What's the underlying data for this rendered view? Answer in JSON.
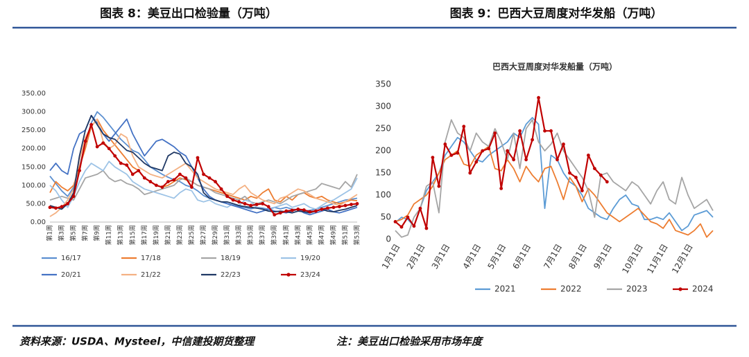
{
  "chart_data": [
    {
      "type": "line",
      "title": "图表 8：美豆出口检验量（万吨）",
      "categories": [
        "第1周",
        null,
        "第3周",
        null,
        "第5周",
        null,
        "第7周",
        null,
        "第9周",
        null,
        "第11周",
        null,
        "第13周",
        null,
        "第15周",
        null,
        "第17周",
        null,
        "第19周",
        null,
        "第21周",
        null,
        "第23周",
        null,
        "第25周",
        null,
        "第27周",
        null,
        "第29周",
        null,
        "第31周",
        null,
        "第33周",
        null,
        "第35周",
        null,
        "第37周",
        null,
        "第39周",
        null,
        "第41周",
        null,
        "第43周",
        null,
        "第45周",
        null,
        "第47周",
        null,
        "第49周",
        null,
        "第51周",
        null,
        "第53周"
      ],
      "ylim": [
        0,
        350
      ],
      "yticks": [
        {
          "value": 0,
          "label": "0.00"
        },
        {
          "value": 50,
          "label": "50.00"
        },
        {
          "value": 100,
          "label": "100.00"
        },
        {
          "value": 150,
          "label": "150.00"
        },
        {
          "value": 200,
          "label": "200.00"
        },
        {
          "value": 250,
          "label": "250.00"
        },
        {
          "value": 300,
          "label": "300.00"
        },
        {
          "value": 350,
          "label": "350.00"
        }
      ],
      "grid": false,
      "legend": "bottom",
      "series": [
        {
          "name": "16/17",
          "color": "#5b8fd0",
          "values": [
            125,
            105,
            85,
            70,
            95,
            150,
            215,
            270,
            300,
            285,
            265,
            245,
            225,
            210,
            195,
            188,
            170,
            150,
            140,
            130,
            122,
            115,
            110,
            100,
            95,
            85,
            72,
            65,
            60,
            55,
            50,
            46,
            42,
            40,
            36,
            40,
            38,
            35,
            40,
            36,
            40,
            35,
            34,
            30,
            32,
            35,
            40,
            45,
            50,
            55,
            60,
            62,
            65
          ]
        },
        {
          "name": "17/18",
          "color": "#ed7d31",
          "values": [
            80,
            110,
            95,
            85,
            100,
            150,
            200,
            260,
            280,
            250,
            230,
            210,
            190,
            170,
            150,
            140,
            120,
            110,
            100,
            95,
            100,
            110,
            120,
            115,
            110,
            100,
            95,
            90,
            85,
            80,
            75,
            70,
            65,
            60,
            70,
            65,
            80,
            90,
            60,
            55,
            70,
            60,
            75,
            80,
            70,
            65,
            70,
            60,
            55,
            50,
            55,
            60,
            58
          ]
        },
        {
          "name": "18/19",
          "color": "#a5a5a5",
          "values": [
            60,
            65,
            70,
            65,
            60,
            90,
            120,
            125,
            130,
            140,
            120,
            110,
            115,
            105,
            100,
            90,
            75,
            80,
            85,
            90,
            95,
            100,
            115,
            120,
            110,
            100,
            95,
            90,
            80,
            75,
            70,
            65,
            60,
            70,
            55,
            50,
            55,
            60,
            55,
            50,
            60,
            70,
            75,
            80,
            85,
            90,
            105,
            100,
            95,
            90,
            110,
            95,
            130
          ]
        },
        {
          "name": "19/20",
          "color": "#9dc3e6",
          "values": [
            100,
            85,
            60,
            40,
            70,
            110,
            140,
            160,
            150,
            140,
            165,
            150,
            140,
            130,
            110,
            100,
            90,
            85,
            80,
            75,
            70,
            65,
            80,
            90,
            85,
            60,
            55,
            60,
            50,
            45,
            40,
            50,
            45,
            60,
            55,
            40,
            35,
            30,
            40,
            45,
            50,
            40,
            45,
            50,
            40,
            35,
            45,
            55,
            60,
            70,
            80,
            90,
            120
          ]
        },
        {
          "name": "20/21",
          "color": "#4472c4",
          "values": [
            140,
            160,
            140,
            130,
            200,
            240,
            250,
            290,
            270,
            240,
            220,
            240,
            260,
            280,
            240,
            210,
            180,
            200,
            220,
            225,
            215,
            205,
            190,
            180,
            150,
            120,
            90,
            70,
            60,
            55,
            50,
            45,
            40,
            35,
            30,
            25,
            30,
            35,
            30,
            28,
            25,
            30,
            35,
            25,
            20,
            25,
            30,
            35,
            28,
            25,
            30,
            35,
            40
          ]
        },
        {
          "name": "21/22",
          "color": "#f4b183",
          "values": [
            15,
            25,
            40,
            60,
            90,
            170,
            230,
            260,
            280,
            220,
            200,
            210,
            240,
            230,
            180,
            150,
            140,
            130,
            125,
            120,
            130,
            140,
            150,
            160,
            140,
            120,
            110,
            100,
            90,
            85,
            80,
            75,
            90,
            100,
            80,
            70,
            60,
            55,
            50,
            65,
            70,
            80,
            90,
            85,
            75,
            65,
            60,
            55,
            50,
            45,
            55,
            65,
            75
          ]
        },
        {
          "name": "22/23",
          "color": "#1f3864",
          "values": [
            45,
            40,
            35,
            50,
            80,
            180,
            250,
            290,
            265,
            240,
            230,
            225,
            210,
            195,
            190,
            175,
            160,
            150,
            145,
            140,
            180,
            190,
            185,
            160,
            150,
            130,
            80,
            65,
            60,
            55,
            55,
            50,
            45,
            42,
            40,
            38,
            35,
            30,
            28,
            30,
            28,
            25,
            30,
            28,
            25,
            30,
            35,
            30,
            28,
            32,
            35,
            40,
            45
          ]
        },
        {
          "name": "23/24",
          "color": "#c00000",
          "markers": true,
          "values": [
            40,
            38,
            42,
            50,
            70,
            140,
            220,
            265,
            205,
            215,
            200,
            180,
            160,
            155,
            130,
            140,
            120,
            110,
            100,
            95,
            110,
            115,
            130,
            120,
            95,
            175,
            130,
            120,
            110,
            90,
            70,
            60,
            55,
            50,
            45,
            48,
            50,
            42,
            20,
            25,
            30,
            32,
            35,
            33,
            28,
            30,
            35,
            38,
            40,
            42,
            45,
            48,
            50
          ]
        }
      ]
    },
    {
      "type": "line",
      "title": "图表 9：巴西大豆周度对华发船（万吨）",
      "subtitle": "巴西大豆周度对华发船量（万吨）",
      "categories": [
        "1月1日",
        null,
        null,
        null,
        "2月1日",
        null,
        null,
        null,
        "3月1日",
        null,
        null,
        null,
        null,
        "4月1日",
        null,
        null,
        null,
        "5月1日",
        null,
        null,
        null,
        "6月1日",
        null,
        null,
        null,
        null,
        "7月1日",
        null,
        null,
        null,
        "8月1日",
        null,
        null,
        null,
        "9月1日",
        null,
        null,
        null,
        null,
        "10月1日",
        null,
        null,
        null,
        "11月1日",
        null,
        null,
        null,
        "12月1日",
        null,
        null,
        null,
        null
      ],
      "ylim": [
        0,
        350
      ],
      "yticks": [
        0,
        50,
        100,
        150,
        200,
        250,
        300,
        350
      ],
      "grid": false,
      "legend": "bottom",
      "series": [
        {
          "name": "2021",
          "color": "#5b9bd5",
          "values": [
            38,
            50,
            45,
            30,
            70,
            110,
            130,
            150,
            190,
            210,
            230,
            220,
            200,
            180,
            175,
            190,
            200,
            210,
            220,
            240,
            230,
            260,
            275,
            260,
            70,
            190,
            180,
            150,
            130,
            120,
            100,
            70,
            60,
            50,
            45,
            70,
            90,
            100,
            80,
            75,
            45,
            45,
            50,
            45,
            60,
            40,
            20,
            30,
            55,
            60,
            65,
            50
          ]
        },
        {
          "name": "2022",
          "color": "#ed7d31",
          "values": [
            40,
            45,
            55,
            80,
            90,
            100,
            120,
            150,
            180,
            190,
            200,
            170,
            165,
            190,
            200,
            210,
            160,
            155,
            180,
            160,
            130,
            165,
            145,
            130,
            160,
            165,
            130,
            90,
            140,
            120,
            85,
            115,
            100,
            80,
            60,
            50,
            40,
            50,
            60,
            70,
            55,
            40,
            35,
            25,
            45,
            20,
            15,
            10,
            20,
            35,
            5,
            20
          ]
        },
        {
          "name": "2023",
          "color": "#a5a5a5",
          "values": [
            20,
            5,
            10,
            50,
            70,
            120,
            130,
            60,
            220,
            270,
            240,
            230,
            200,
            240,
            220,
            210,
            250,
            220,
            180,
            240,
            160,
            250,
            270,
            220,
            200,
            215,
            240,
            200,
            180,
            160,
            140,
            110,
            50,
            145,
            150,
            130,
            120,
            110,
            130,
            120,
            100,
            80,
            110,
            130,
            90,
            80,
            140,
            100,
            70,
            80,
            90,
            65
          ]
        },
        {
          "name": "2024",
          "color": "#c00000",
          "markers": true,
          "values": [
            40,
            28,
            50,
            30,
            70,
            25,
            185,
            120,
            215,
            190,
            195,
            255,
            150,
            175,
            200,
            205,
            240,
            115,
            200,
            180,
            245,
            180,
            225,
            320,
            245,
            245,
            180,
            215,
            150,
            140,
            110,
            190,
            160,
            145,
            130,
            null,
            null,
            null,
            null,
            null,
            null,
            null,
            null,
            null,
            null,
            null,
            null,
            null,
            null,
            null,
            null,
            null
          ]
        }
      ]
    }
  ],
  "footer": {
    "source": "资料来源：USDA、Mysteel，中信建投期货整理",
    "note": "注：美豆出口检验采用市场年度"
  }
}
